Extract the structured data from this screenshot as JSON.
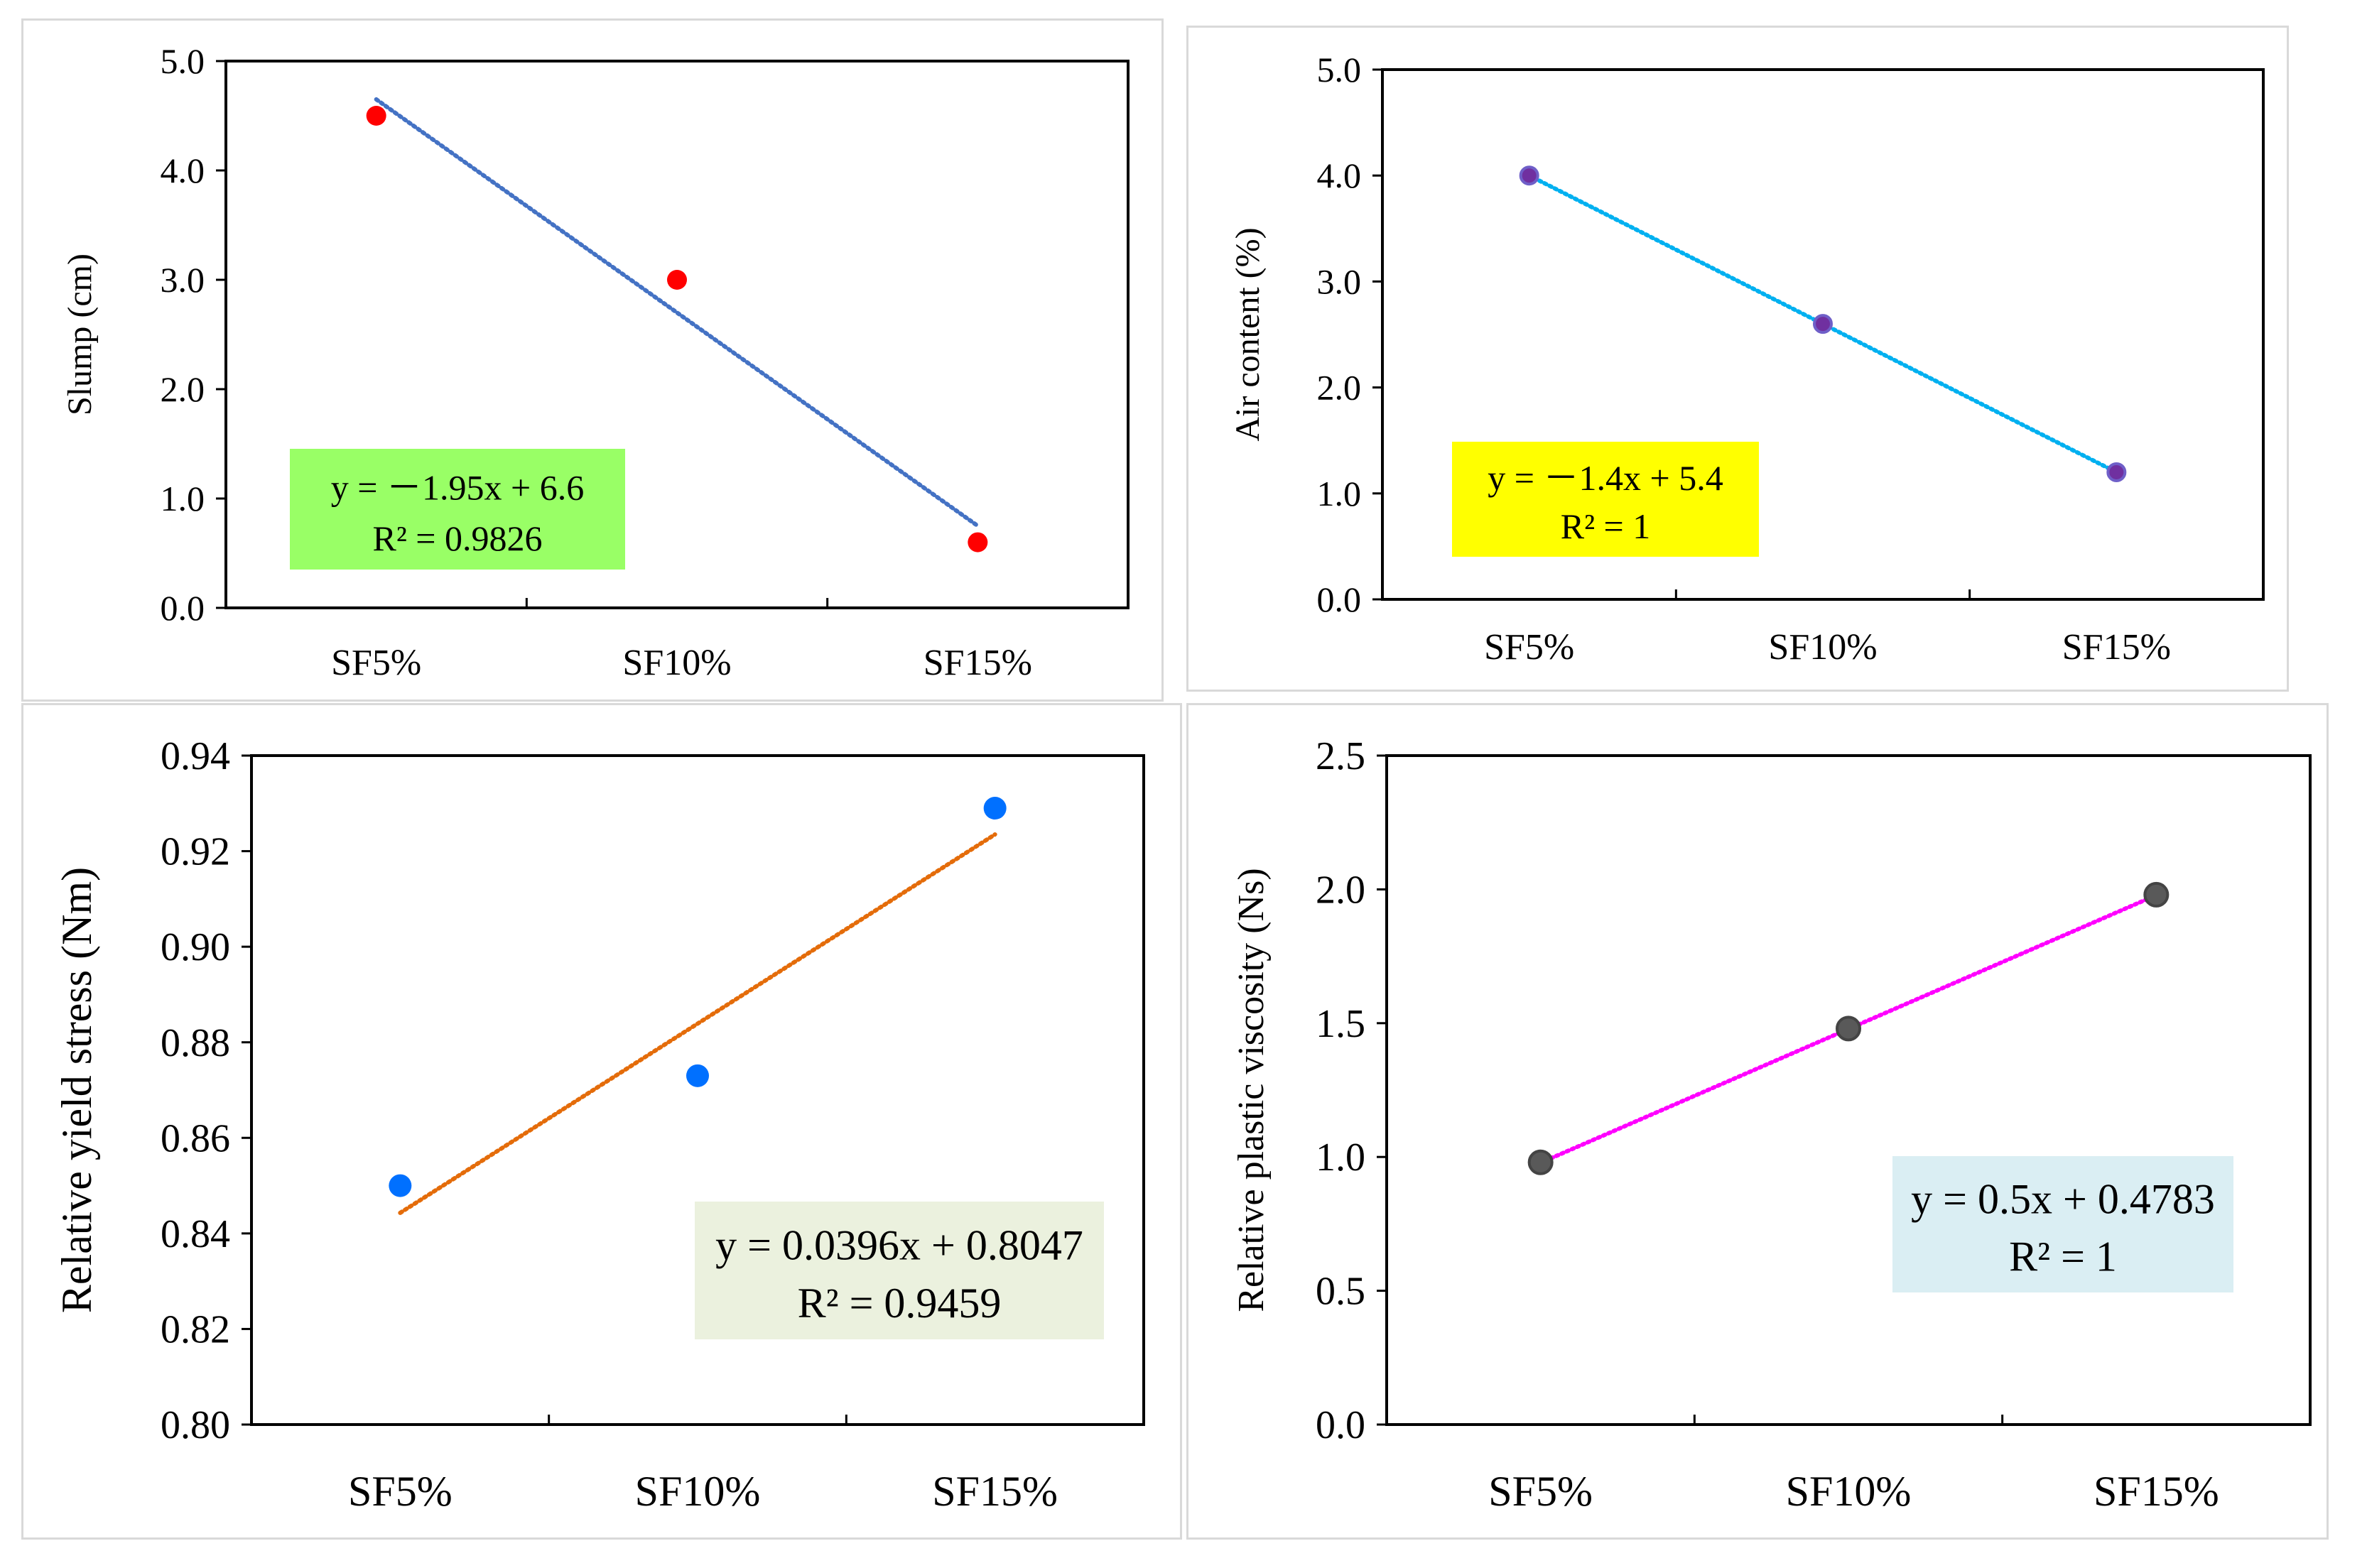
{
  "chart_data": [
    {
      "type": "scatter",
      "ylabel": "Slump (cm)",
      "categories": [
        "SF5%",
        "SF10%",
        "SF15%"
      ],
      "ylim": [
        0,
        5
      ],
      "yticks": [
        "0.0",
        "1.0",
        "2.0",
        "3.0",
        "4.0",
        "5.0"
      ],
      "series": [
        {
          "values": [
            4.5,
            3.0,
            0.6
          ]
        }
      ],
      "trendline": {
        "slope": -1.95,
        "intercept": 6.6,
        "style": "dotted"
      },
      "equation": [
        "y = －1.95x + 6.6",
        "R² = 0.9826"
      ],
      "colors": {
        "marker": "#ff0000",
        "trend": "#4472c4",
        "box": "#99ff66"
      }
    },
    {
      "type": "scatter",
      "ylabel": "Air content (%)",
      "categories": [
        "SF5%",
        "SF10%",
        "SF15%"
      ],
      "ylim": [
        0,
        5
      ],
      "yticks": [
        "0.0",
        "1.0",
        "2.0",
        "3.0",
        "4.0",
        "5.0"
      ],
      "series": [
        {
          "values": [
            4.0,
            2.6,
            1.2
          ]
        }
      ],
      "trendline": {
        "slope": -1.4,
        "intercept": 5.4,
        "style": "dotted"
      },
      "equation": [
        "y = －1.4x + 5.4",
        "R² = 1"
      ],
      "colors": {
        "marker": "#7030a0",
        "trend": "#00b0f0",
        "box": "#ffff00"
      }
    },
    {
      "type": "scatter",
      "ylabel": "Relative yield stress (Nm)",
      "categories": [
        "SF5%",
        "SF10%",
        "SF15%"
      ],
      "ylim": [
        0.8,
        0.94
      ],
      "yticks": [
        "0.80",
        "0.82",
        "0.84",
        "0.86",
        "0.88",
        "0.90",
        "0.92",
        "0.94"
      ],
      "series": [
        {
          "values": [
            0.85,
            0.873,
            0.929
          ]
        }
      ],
      "trendline": {
        "slope": 0.0396,
        "intercept": 0.8047,
        "style": "dotted"
      },
      "equation": [
        "y = 0.0396x + 0.8047",
        "R² = 0.9459"
      ],
      "colors": {
        "marker": "#0070ff",
        "trend": "#e46c0a",
        "box": "#ebf1de"
      }
    },
    {
      "type": "scatter",
      "ylabel": "Relative plastic viscosity (Ns)",
      "categories": [
        "SF5%",
        "SF10%",
        "SF15%"
      ],
      "ylim": [
        0,
        2.5
      ],
      "yticks": [
        "0.0",
        "0.5",
        "1.0",
        "1.5",
        "2.0",
        "2.5"
      ],
      "series": [
        {
          "values": [
            0.98,
            1.48,
            1.98
          ]
        }
      ],
      "trendline": {
        "slope": 0.5,
        "intercept": 0.4783,
        "style": "dotted"
      },
      "equation": [
        "y = 0.5x + 0.4783",
        "R² = 1"
      ],
      "colors": {
        "marker": "#595959",
        "trend": "#ff00ff",
        "box": "#daeef3"
      }
    }
  ]
}
